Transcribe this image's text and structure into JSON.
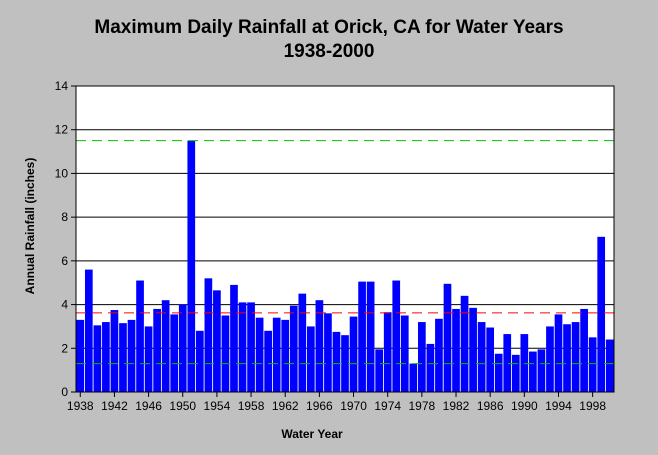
{
  "chart_data": {
    "type": "bar",
    "title_line1": "Maximum Daily Rainfall at Orick, CA for Water Years",
    "title_line2": "1938-2000",
    "xlabel": "Water Year",
    "ylabel": "Annual Rainfall (inches)",
    "ylim": [
      0,
      14
    ],
    "yticks": [
      0,
      2,
      4,
      6,
      8,
      10,
      12,
      14
    ],
    "xticks": [
      "1938",
      "1942",
      "1946",
      "1950",
      "1954",
      "1958",
      "1962",
      "1966",
      "1970",
      "1974",
      "1978",
      "1982",
      "1986",
      "1990",
      "1994",
      "1998"
    ],
    "grid": true,
    "legend": "none",
    "bar_color": "#0000ff",
    "categories": [
      1938,
      1939,
      1940,
      1941,
      1942,
      1943,
      1944,
      1945,
      1946,
      1947,
      1948,
      1949,
      1950,
      1951,
      1952,
      1953,
      1954,
      1955,
      1956,
      1957,
      1958,
      1959,
      1960,
      1961,
      1962,
      1963,
      1964,
      1965,
      1966,
      1967,
      1968,
      1969,
      1970,
      1971,
      1972,
      1973,
      1974,
      1975,
      1976,
      1977,
      1978,
      1979,
      1980,
      1981,
      1982,
      1983,
      1984,
      1985,
      1986,
      1987,
      1988,
      1989,
      1990,
      1991,
      1992,
      1993,
      1994,
      1995,
      1996,
      1997,
      1998,
      1999,
      2000
    ],
    "values": [
      3.3,
      5.6,
      3.05,
      3.2,
      3.75,
      3.15,
      3.3,
      5.1,
      3.0,
      3.8,
      4.2,
      3.55,
      4.0,
      11.5,
      2.8,
      5.2,
      4.65,
      3.5,
      4.9,
      4.1,
      4.1,
      3.4,
      2.8,
      3.4,
      3.3,
      3.95,
      4.5,
      3.0,
      4.2,
      3.6,
      2.75,
      2.6,
      3.45,
      5.05,
      5.05,
      1.95,
      3.65,
      5.1,
      3.5,
      1.3,
      3.2,
      2.2,
      3.35,
      4.95,
      3.8,
      4.4,
      3.85,
      3.2,
      2.95,
      1.75,
      2.65,
      1.7,
      2.65,
      1.85,
      1.95,
      3.0,
      3.55,
      3.1,
      3.2,
      3.8,
      2.5,
      7.1,
      2.4
    ],
    "reference_lines": [
      {
        "value": 11.5,
        "color": "#00c000"
      },
      {
        "value": 3.62,
        "color": "#ff0000"
      },
      {
        "value": 1.3,
        "color": "#00c000"
      }
    ]
  }
}
